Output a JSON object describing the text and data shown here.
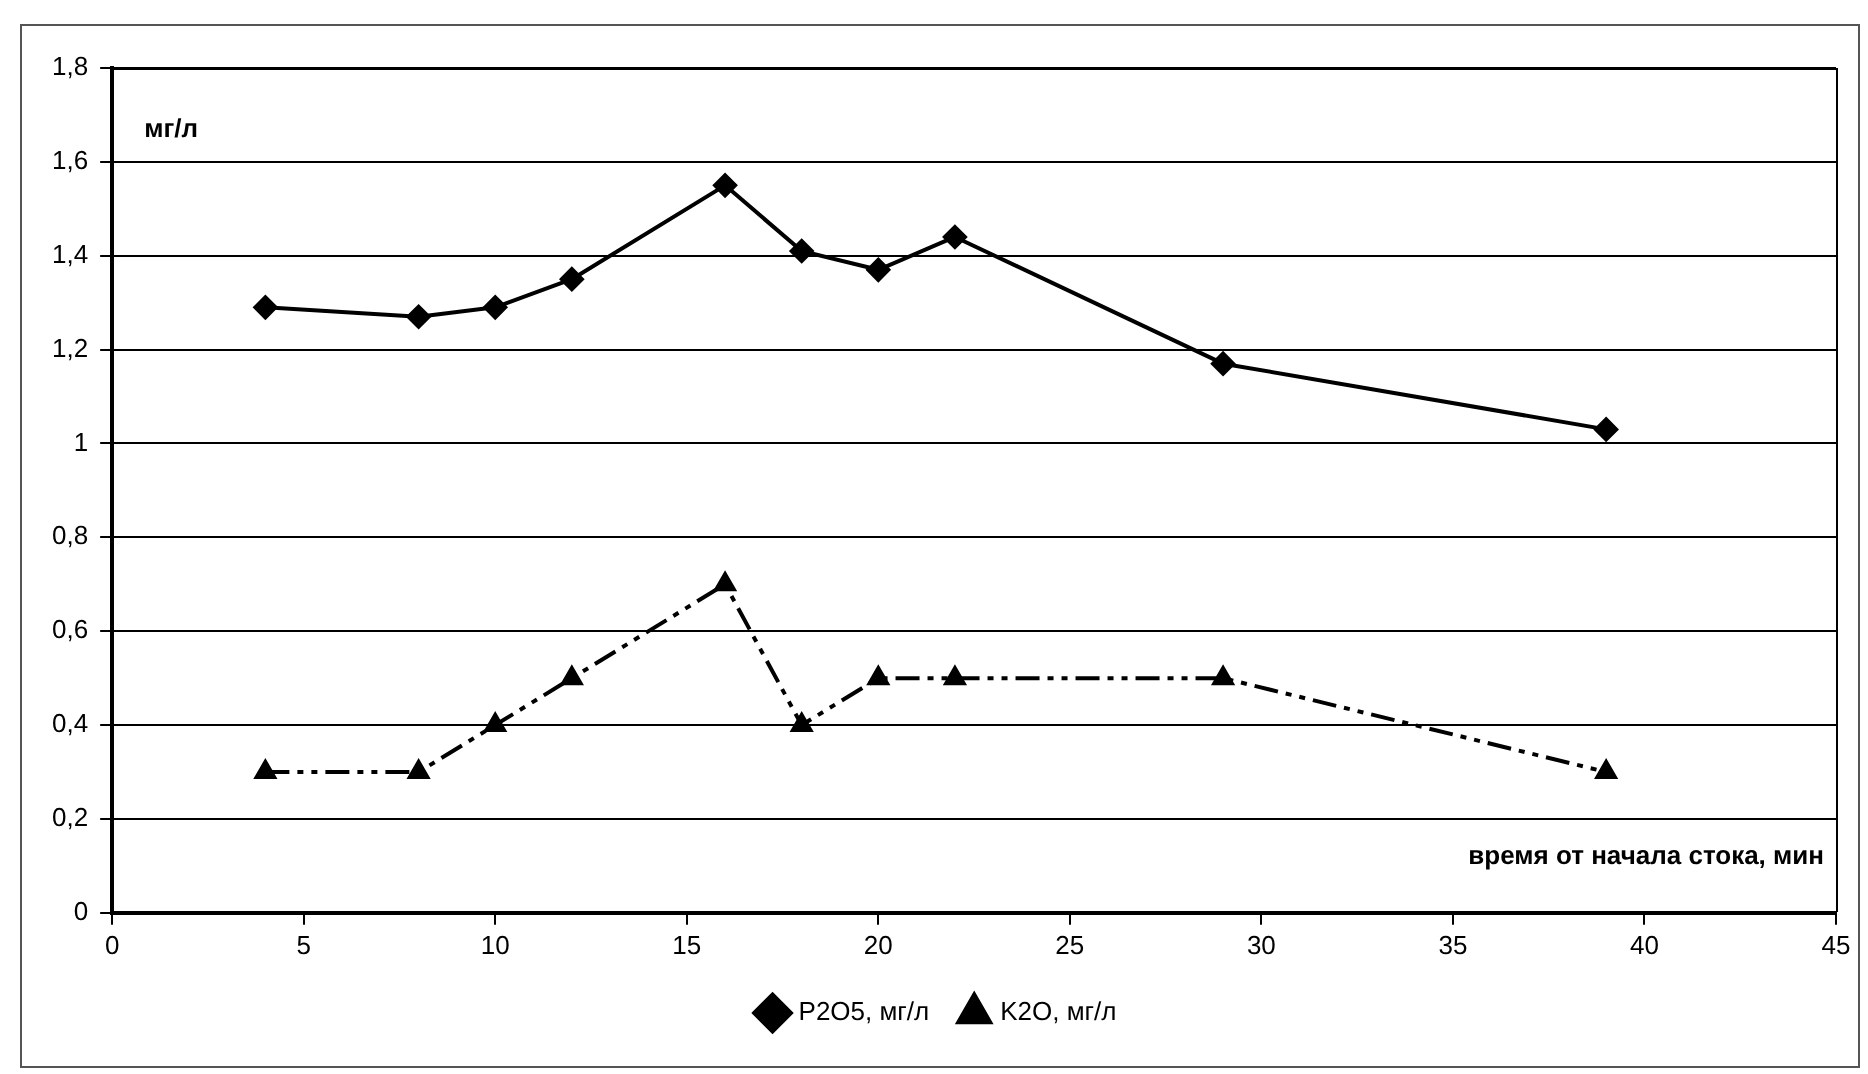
{
  "chart_data": {
    "type": "line",
    "xlabel": "время от начала стока, мин",
    "ylabel": "мг/л",
    "series": [
      {
        "name": "P2O5, мг/л",
        "color": "#000000",
        "marker": "diamond",
        "line_style": "solid",
        "x": [
          4,
          8,
          10,
          12,
          16,
          18,
          20,
          22,
          29,
          39
        ],
        "values": [
          1.29,
          1.27,
          1.29,
          1.35,
          1.55,
          1.41,
          1.37,
          1.44,
          1.17,
          1.03
        ]
      },
      {
        "name": "K2O, мг/л",
        "color": "#000000",
        "marker": "triangle",
        "line_style": "dashed",
        "x": [
          4,
          8,
          10,
          12,
          16,
          18,
          20,
          22,
          29,
          39
        ],
        "values": [
          0.3,
          0.3,
          0.4,
          0.5,
          0.7,
          0.4,
          0.5,
          0.5,
          0.5,
          0.3
        ]
      }
    ],
    "xlim": [
      0,
      45
    ],
    "xticks": [
      0,
      5,
      10,
      15,
      20,
      25,
      30,
      35,
      40,
      45
    ],
    "ylim": [
      0,
      1.8
    ],
    "yticks": [
      0,
      {
        "value": 0.2,
        "label": "0,2"
      },
      {
        "value": 0.4,
        "label": "0,4"
      },
      {
        "value": 0.6,
        "label": "0,6"
      },
      {
        "value": 0.8,
        "label": "0,8"
      },
      1,
      {
        "value": 1.2,
        "label": "1,2"
      },
      {
        "value": 1.4,
        "label": "1,4"
      },
      {
        "value": 1.6,
        "label": "1,6"
      },
      {
        "value": 1.8,
        "label": "1,8"
      }
    ],
    "grid": "y",
    "legend": "bottom"
  }
}
